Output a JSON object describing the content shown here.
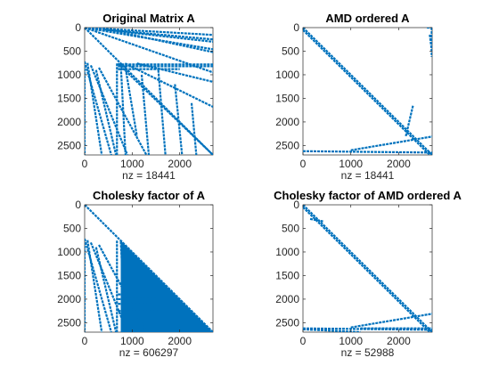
{
  "figure": {
    "background": "#ffffff",
    "marker_color": "#0072BD"
  },
  "chart_data": [
    {
      "type": "scatter",
      "title": "Original Matrix A",
      "xlabel": "nz = 18441",
      "xlim": [
        0,
        2700
      ],
      "ylim": [
        0,
        2700
      ],
      "y_reversed": true,
      "xticks": [
        0,
        1000,
        2000
      ],
      "xtick_labels": [
        "0",
        "1000",
        "2000"
      ],
      "yticks": [
        0,
        500,
        1000,
        1500,
        2000,
        2500
      ],
      "ytick_labels": [
        "0",
        "500",
        "1000",
        "1500",
        "2000",
        "2500"
      ],
      "segments": [
        [
          [
            0,
            0
          ],
          [
            2700,
            2700
          ]
        ],
        [
          [
            0,
            0
          ],
          [
            2700,
            155
          ]
        ],
        [
          [
            0,
            0
          ],
          [
            2700,
            300
          ]
        ],
        [
          [
            0,
            0
          ],
          [
            2700,
            460
          ]
        ],
        [
          [
            0,
            0
          ],
          [
            2700,
            950
          ]
        ],
        [
          [
            300,
            0
          ],
          [
            2700,
            520
          ]
        ],
        [
          [
            400,
            40
          ],
          [
            2700,
            250
          ]
        ],
        [
          [
            700,
            760
          ],
          [
            2700,
            2700
          ]
        ],
        [
          [
            850,
            760
          ],
          [
            2700,
            1680
          ]
        ],
        [
          [
            1100,
            760
          ],
          [
            2700,
            1150
          ]
        ],
        [
          [
            700,
            780
          ],
          [
            2700,
            780
          ]
        ],
        [
          [
            700,
            820
          ],
          [
            2700,
            820
          ]
        ],
        [
          [
            700,
            880
          ],
          [
            2000,
            880
          ]
        ],
        [
          [
            0,
            720
          ],
          [
            0,
            2700
          ]
        ],
        [
          [
            0,
            720
          ],
          [
            560,
            2700
          ]
        ],
        [
          [
            60,
            750
          ],
          [
            360,
            2700
          ]
        ],
        [
          [
            130,
            800
          ],
          [
            900,
            2700
          ]
        ],
        [
          [
            240,
            900
          ],
          [
            660,
            2700
          ]
        ],
        [
          [
            300,
            850
          ],
          [
            1300,
            2700
          ]
        ],
        [
          [
            680,
            760
          ],
          [
            680,
            2700
          ]
        ],
        [
          [
            760,
            780
          ],
          [
            860,
            2700
          ]
        ],
        [
          [
            850,
            800
          ],
          [
            1100,
            2300
          ]
        ],
        [
          [
            1200,
            1000
          ],
          [
            1350,
            2700
          ]
        ],
        [
          [
            1550,
            900
          ],
          [
            1700,
            2700
          ]
        ],
        [
          [
            1900,
            1200
          ],
          [
            2050,
            2700
          ]
        ],
        [
          [
            2250,
            1600
          ],
          [
            2350,
            2700
          ]
        ]
      ]
    },
    {
      "type": "scatter",
      "title": "AMD ordered A",
      "xlabel": "nz = 18441",
      "xlim": [
        0,
        2700
      ],
      "ylim": [
        0,
        2700
      ],
      "y_reversed": true,
      "xticks": [
        0,
        1000,
        2000
      ],
      "xtick_labels": [
        "0",
        "1000",
        "2000"
      ],
      "yticks": [
        0,
        500,
        1000,
        1500,
        2000,
        2500
      ],
      "ytick_labels": [
        "0",
        "500",
        "1000",
        "1500",
        "2000",
        "2500"
      ],
      "segments": [
        [
          [
            0,
            0
          ],
          [
            2700,
            2700
          ]
        ],
        [
          [
            0,
            50
          ],
          [
            2650,
            2700
          ]
        ],
        [
          [
            0,
            2620
          ],
          [
            2700,
            2650
          ]
        ],
        [
          [
            1000,
            2600
          ],
          [
            2700,
            2310
          ]
        ],
        [
          [
            2150,
            2300
          ],
          [
            2300,
            1650
          ]
        ],
        [
          [
            2600,
            2600
          ],
          [
            2700,
            2700
          ]
        ],
        [
          [
            2590,
            0
          ],
          [
            2700,
            0
          ]
        ],
        [
          [
            2690,
            0
          ],
          [
            2690,
            620
          ]
        ],
        [
          [
            2650,
            150
          ],
          [
            2700,
            550
          ]
        ]
      ]
    },
    {
      "type": "scatter",
      "title": "Cholesky factor of A",
      "xlabel": "nz = 606297",
      "xlim": [
        0,
        2700
      ],
      "ylim": [
        0,
        2700
      ],
      "y_reversed": true,
      "xticks": [
        0,
        1000,
        2000
      ],
      "xtick_labels": [
        "0",
        "1000",
        "2000"
      ],
      "yticks": [
        0,
        500,
        1000,
        1500,
        2000,
        2500
      ],
      "ytick_labels": [
        "0",
        "500",
        "1000",
        "1500",
        "2000",
        "2500"
      ],
      "segments": [
        [
          [
            0,
            0
          ],
          [
            2700,
            2700
          ]
        ],
        [
          [
            0,
            720
          ],
          [
            0,
            2700
          ]
        ],
        [
          [
            0,
            720
          ],
          [
            560,
            2700
          ]
        ],
        [
          [
            60,
            750
          ],
          [
            360,
            2700
          ]
        ],
        [
          [
            130,
            800
          ],
          [
            900,
            2700
          ]
        ],
        [
          [
            240,
            900
          ],
          [
            660,
            2700
          ]
        ],
        [
          [
            300,
            850
          ],
          [
            1300,
            2700
          ]
        ],
        [
          [
            680,
            760
          ],
          [
            680,
            2700
          ]
        ],
        [
          [
            760,
            780
          ],
          [
            860,
            2700
          ]
        ],
        [
          [
            700,
            1900
          ],
          [
            1550,
            1900
          ]
        ],
        [
          [
            700,
            2000
          ],
          [
            1500,
            2000
          ]
        ],
        [
          [
            700,
            2100
          ],
          [
            1450,
            2100
          ]
        ],
        [
          [
            700,
            2250
          ],
          [
            1550,
            2250
          ]
        ]
      ],
      "regions": [
        [
          [
            760,
            760
          ],
          [
            2700,
            2700
          ],
          [
            760,
            2700
          ]
        ]
      ]
    },
    {
      "type": "scatter",
      "title": "Cholesky factor of AMD ordered A",
      "xlabel": "nz = 52988",
      "xlim": [
        0,
        2700
      ],
      "ylim": [
        0,
        2700
      ],
      "y_reversed": true,
      "xticks": [
        0,
        1000,
        2000
      ],
      "xtick_labels": [
        "0",
        "1000",
        "2000"
      ],
      "yticks": [
        0,
        500,
        1000,
        1500,
        2000,
        2500
      ],
      "ytick_labels": [
        "0",
        "500",
        "1000",
        "1500",
        "2000",
        "2500"
      ],
      "segments": [
        [
          [
            0,
            0
          ],
          [
            2700,
            2700
          ]
        ],
        [
          [
            0,
            50
          ],
          [
            2650,
            2700
          ]
        ],
        [
          [
            0,
            2620
          ],
          [
            2700,
            2650
          ]
        ],
        [
          [
            1200,
            2620
          ],
          [
            2700,
            2620
          ]
        ],
        [
          [
            1000,
            2600
          ],
          [
            2700,
            2310
          ]
        ],
        [
          [
            0,
            2640
          ],
          [
            1200,
            2700
          ]
        ],
        [
          [
            150,
            300
          ],
          [
            420,
            350
          ]
        ],
        [
          [
            2600,
            2600
          ],
          [
            2700,
            2700
          ]
        ]
      ]
    }
  ]
}
